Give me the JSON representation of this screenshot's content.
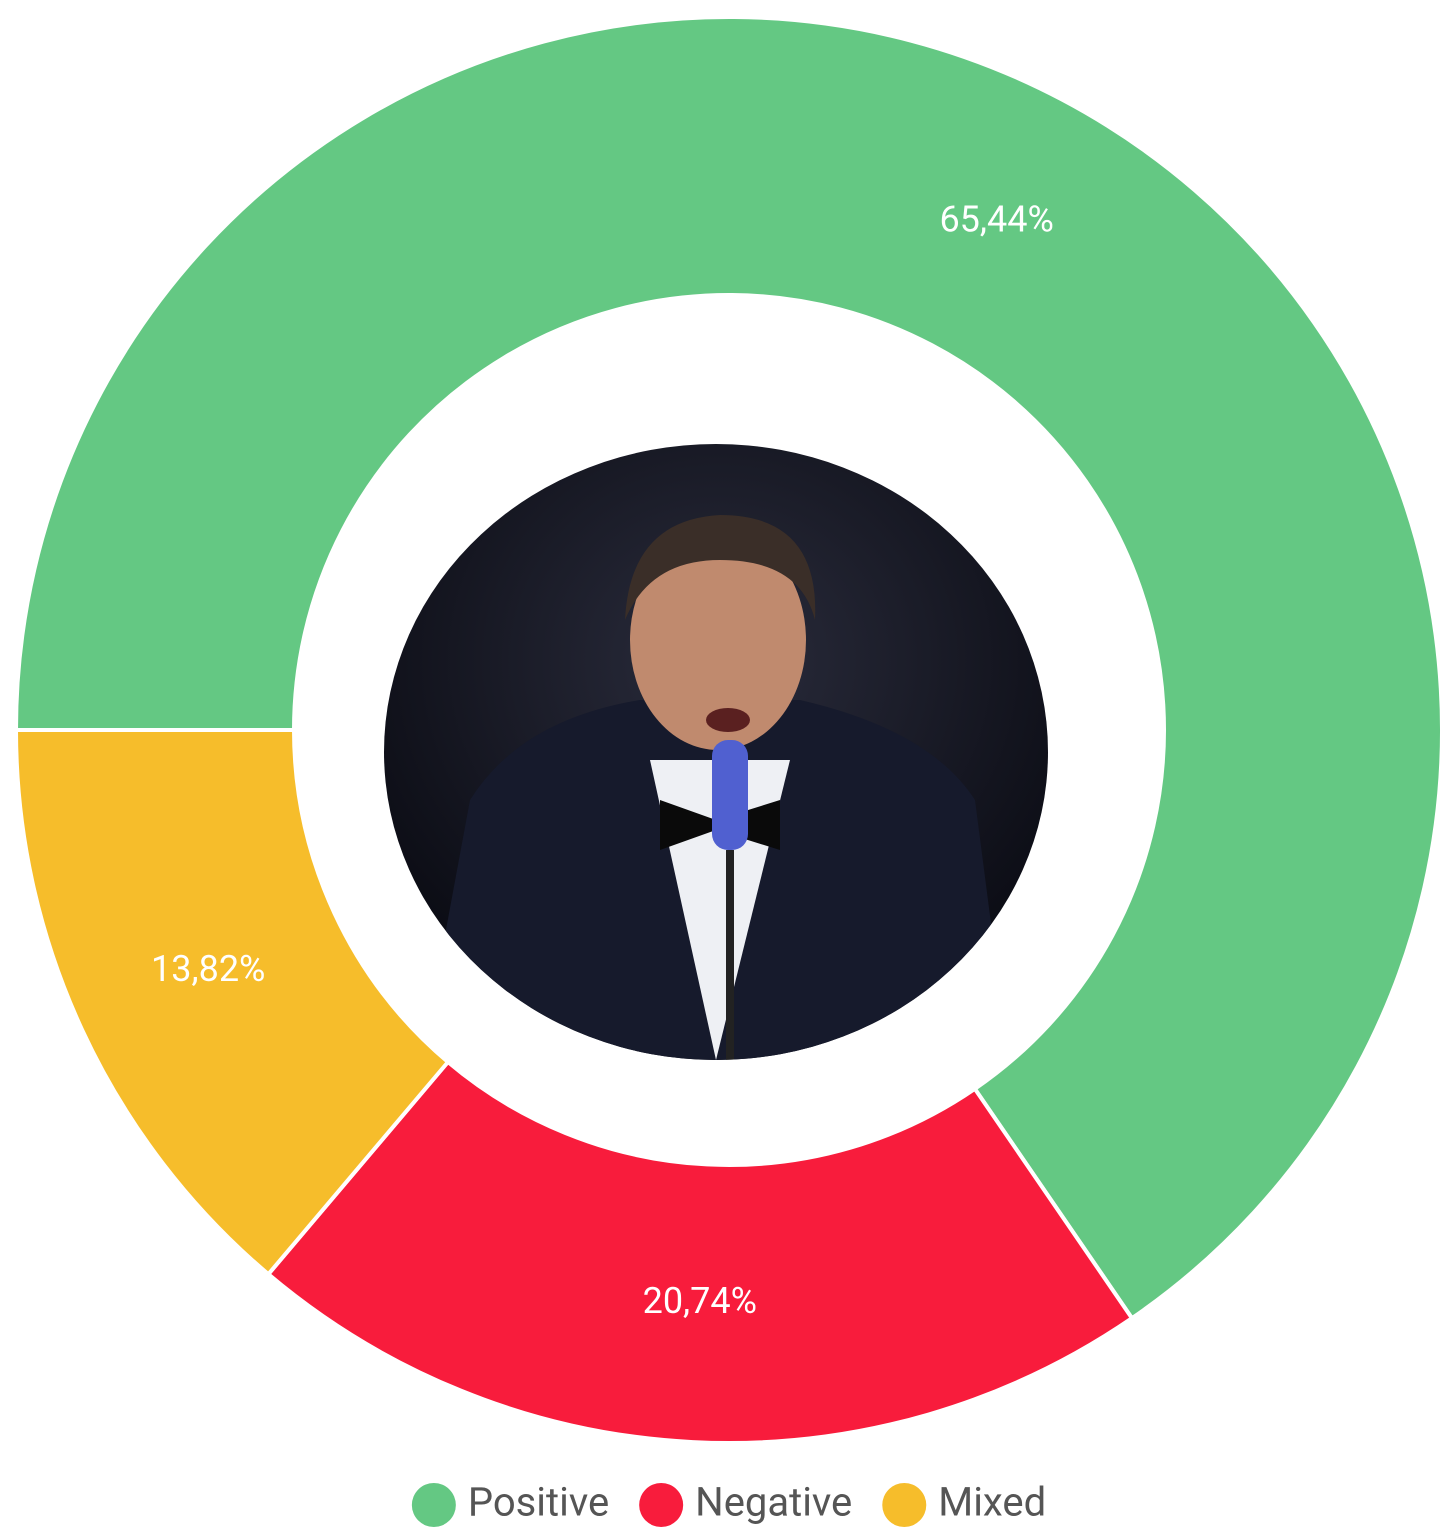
{
  "chart_data": {
    "type": "donut",
    "categories": [
      "Positive",
      "Negative",
      "Mixed"
    ],
    "values": [
      65.44,
      20.74,
      13.82
    ],
    "value_labels": [
      "65,44%",
      "20,74%",
      "13,82%"
    ],
    "colors": [
      "#64c883",
      "#f81c3c",
      "#f6bd2b"
    ],
    "legend": "bottom"
  }
}
